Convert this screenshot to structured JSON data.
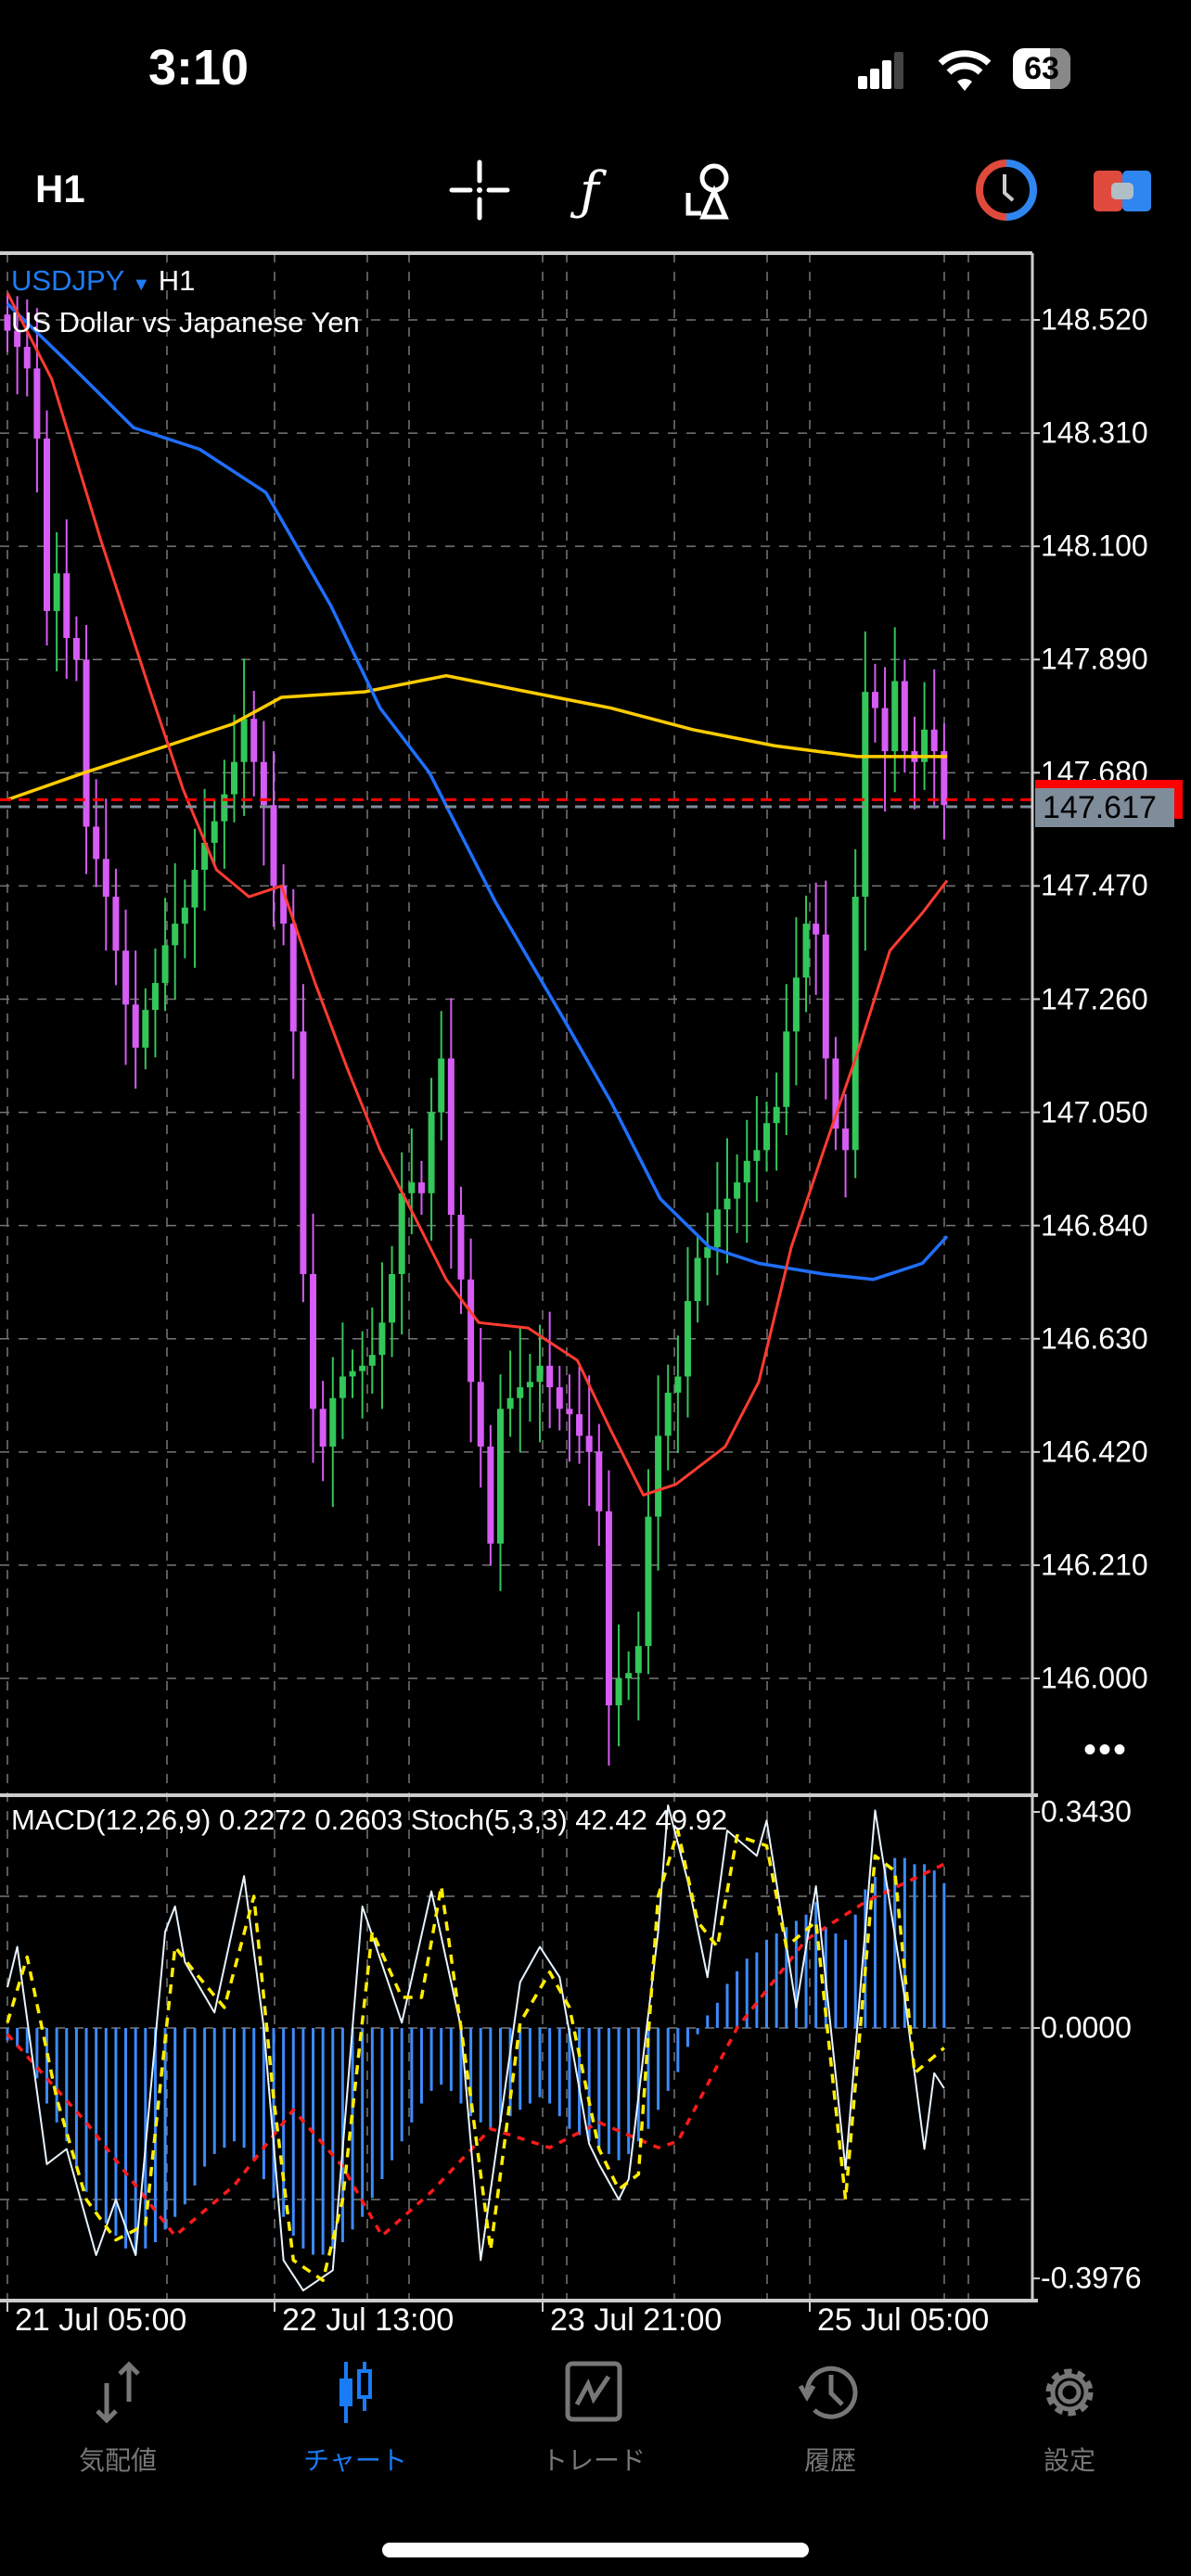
{
  "status_bar": {
    "time": "3:10",
    "battery": "63",
    "signal_bars": 3,
    "wifi": true
  },
  "toolbar": {
    "timeframe": "H1",
    "icons": [
      "crosshair-icon",
      "function-icon",
      "objects-icon",
      "clock-icon",
      "trade-toggle-icon"
    ]
  },
  "chart": {
    "symbol": "USDJPY",
    "timeframe": "H1",
    "description": "US Dollar vs Japanese Yen",
    "price_axis": [
      "148.520",
      "148.310",
      "148.100",
      "147.890",
      "147.680",
      "147.470",
      "147.260",
      "147.050",
      "146.840",
      "146.630",
      "146.420",
      "146.210",
      "146.000"
    ],
    "bid_label": "147.617",
    "ask_price": 147.63,
    "colors": {
      "bull": "#33c659",
      "bear": "#d65cf5",
      "ma_fast": "#ff3b30",
      "ma_mid": "#1f6fff",
      "ma_slow": "#ffcc00",
      "ask": "#ff0000",
      "bid": "#7f8c9a"
    },
    "closes": [
      148.5,
      148.47,
      148.43,
      148.3,
      147.98,
      148.05,
      147.93,
      147.89,
      147.58,
      147.52,
      147.45,
      147.35,
      147.25,
      147.17,
      147.24,
      147.29,
      147.36,
      147.4,
      147.43,
      147.5,
      147.55,
      147.59,
      147.64,
      147.7,
      147.78,
      147.7,
      147.62,
      147.47,
      147.4,
      147.2,
      146.75,
      146.5,
      146.43,
      146.52,
      146.56,
      146.57,
      146.58,
      146.6,
      146.66,
      146.75,
      146.9,
      146.92,
      146.9,
      147.05,
      147.15,
      146.86,
      146.74,
      146.55,
      146.43,
      146.25,
      146.5,
      146.52,
      146.54,
      146.55,
      146.58,
      146.54,
      146.5,
      146.49,
      146.45,
      146.42,
      146.31,
      145.95,
      146.0,
      146.01,
      146.06,
      146.3,
      146.45,
      146.53,
      146.56,
      146.7,
      146.78,
      146.8,
      146.87,
      146.89,
      146.92,
      146.96,
      146.98,
      147.03,
      147.06,
      147.2,
      147.3,
      147.4,
      147.38,
      147.15,
      147.02,
      146.98,
      147.45,
      147.83,
      147.8,
      147.72,
      147.85,
      147.72,
      147.7,
      147.76,
      147.72,
      147.62
    ],
    "ma_fast": [
      [
        0,
        148.57
      ],
      [
        4.5,
        148.41
      ],
      [
        9.5,
        148.11
      ],
      [
        14.5,
        147.83
      ],
      [
        17.8,
        147.65
      ],
      [
        21.2,
        147.5
      ],
      [
        24.5,
        147.45
      ],
      [
        27.8,
        147.47
      ],
      [
        31.2,
        147.29
      ],
      [
        34.5,
        147.13
      ],
      [
        37.8,
        146.98
      ],
      [
        41.2,
        146.86
      ],
      [
        44.5,
        146.74
      ],
      [
        47.8,
        146.66
      ],
      [
        52.8,
        146.65
      ],
      [
        57.8,
        146.59
      ],
      [
        61.2,
        146.46
      ],
      [
        64.5,
        146.34
      ],
      [
        67.8,
        146.36
      ],
      [
        72.8,
        146.43
      ],
      [
        76.2,
        146.55
      ],
      [
        79.5,
        146.8
      ],
      [
        82.8,
        146.98
      ],
      [
        86.2,
        147.16
      ],
      [
        89.5,
        147.35
      ],
      [
        92.8,
        147.42
      ],
      [
        95.3,
        147.48
      ]
    ],
    "ma_mid": [
      [
        0,
        148.55
      ],
      [
        6.2,
        148.44
      ],
      [
        12.8,
        148.32
      ],
      [
        19.5,
        148.28
      ],
      [
        26.2,
        148.2
      ],
      [
        32.8,
        147.99
      ],
      [
        37.8,
        147.8
      ],
      [
        42.8,
        147.68
      ],
      [
        49.5,
        147.44
      ],
      [
        56.2,
        147.23
      ],
      [
        61.2,
        147.07
      ],
      [
        66.2,
        146.89
      ],
      [
        71.2,
        146.8
      ],
      [
        76.2,
        146.77
      ],
      [
        82.8,
        146.75
      ],
      [
        87.8,
        146.74
      ],
      [
        92.8,
        146.77
      ],
      [
        95.3,
        146.82
      ]
    ],
    "ma_slow": [
      [
        0,
        147.63
      ],
      [
        7.8,
        147.68
      ],
      [
        16.2,
        147.73
      ],
      [
        22.8,
        147.77
      ],
      [
        27.8,
        147.82
      ],
      [
        36.2,
        147.83
      ],
      [
        44.5,
        147.86
      ],
      [
        52.8,
        147.83
      ],
      [
        61.2,
        147.8
      ],
      [
        69.5,
        147.76
      ],
      [
        77.8,
        147.73
      ],
      [
        86.2,
        147.71
      ],
      [
        95.3,
        147.71
      ]
    ]
  },
  "indicator": {
    "label": "MACD(12,26,9) 0.2272 0.2603 Stoch(5,3,3) 42.42 49.92",
    "axis": [
      "0.3430",
      "0.0000",
      "-0.3976"
    ],
    "range": [
      -0.3976,
      0.343
    ],
    "colors": {
      "histogram": "#3d8bfd",
      "signal": "#ff1a1a",
      "stoch_main": "#e8f4ff",
      "stoch_signal": "#ffee00"
    },
    "histogram": [
      -0.02,
      -0.03,
      -0.04,
      -0.08,
      -0.12,
      -0.15,
      -0.18,
      -0.22,
      -0.26,
      -0.29,
      -0.31,
      -0.33,
      -0.35,
      -0.36,
      -0.35,
      -0.34,
      -0.32,
      -0.3,
      -0.28,
      -0.25,
      -0.22,
      -0.2,
      -0.19,
      -0.18,
      -0.19,
      -0.21,
      -0.24,
      -0.27,
      -0.3,
      -0.33,
      -0.35,
      -0.36,
      -0.36,
      -0.35,
      -0.34,
      -0.32,
      -0.3,
      -0.27,
      -0.24,
      -0.21,
      -0.18,
      -0.15,
      -0.12,
      -0.1,
      -0.09,
      -0.1,
      -0.12,
      -0.14,
      -0.15,
      -0.16,
      -0.15,
      -0.14,
      -0.13,
      -0.12,
      -0.11,
      -0.12,
      -0.14,
      -0.16,
      -0.17,
      -0.18,
      -0.19,
      -0.2,
      -0.21,
      -0.2,
      -0.18,
      -0.16,
      -0.13,
      -0.1,
      -0.07,
      -0.03,
      -0.01,
      0.02,
      0.04,
      0.07,
      0.09,
      0.11,
      0.12,
      0.14,
      0.15,
      0.16,
      0.17,
      0.18,
      0.2,
      0.16,
      0.15,
      0.14,
      0.18,
      0.22,
      0.24,
      0.26,
      0.27,
      0.27,
      0.26,
      0.26,
      0.25,
      0.23
    ],
    "signal": [
      [
        0,
        -0.01
      ],
      [
        8,
        -0.15
      ],
      [
        17,
        -0.33
      ],
      [
        23,
        -0.25
      ],
      [
        29,
        -0.13
      ],
      [
        34,
        -0.22
      ],
      [
        38,
        -0.33
      ],
      [
        43,
        -0.26
      ],
      [
        49,
        -0.16
      ],
      [
        55,
        -0.19
      ],
      [
        60,
        -0.15
      ],
      [
        66,
        -0.19
      ],
      [
        68,
        -0.18
      ],
      [
        74,
        0.0
      ],
      [
        81,
        0.14
      ],
      [
        87,
        0.2
      ],
      [
        95,
        0.26
      ]
    ],
    "stoch_main": [
      [
        0,
        62
      ],
      [
        1,
        70
      ],
      [
        4,
        27
      ],
      [
        6,
        30
      ],
      [
        9,
        9
      ],
      [
        11,
        20
      ],
      [
        13,
        9
      ],
      [
        16,
        73
      ],
      [
        17,
        78
      ],
      [
        18,
        67
      ],
      [
        21,
        57
      ],
      [
        24,
        84
      ],
      [
        26,
        54
      ],
      [
        28,
        8
      ],
      [
        30,
        2
      ],
      [
        33,
        6
      ],
      [
        36,
        78
      ],
      [
        40,
        55
      ],
      [
        43,
        81
      ],
      [
        46,
        54
      ],
      [
        48,
        8
      ],
      [
        52,
        63
      ],
      [
        54,
        70
      ],
      [
        56,
        64
      ],
      [
        59,
        31
      ],
      [
        60,
        27
      ],
      [
        62,
        20
      ],
      [
        63,
        24
      ],
      [
        66,
        73
      ],
      [
        67,
        98
      ],
      [
        69,
        83
      ],
      [
        71,
        64
      ],
      [
        73,
        93
      ],
      [
        76,
        88
      ],
      [
        77,
        95
      ],
      [
        80,
        58
      ],
      [
        82,
        82
      ],
      [
        85,
        26
      ],
      [
        88,
        97
      ],
      [
        91,
        60
      ],
      [
        93,
        30
      ],
      [
        94,
        45
      ],
      [
        95,
        42
      ]
    ],
    "stoch_signal": [
      [
        0,
        55
      ],
      [
        2,
        68
      ],
      [
        5,
        40
      ],
      [
        8,
        20
      ],
      [
        11,
        12
      ],
      [
        14,
        15
      ],
      [
        17,
        70
      ],
      [
        19,
        65
      ],
      [
        22,
        58
      ],
      [
        25,
        80
      ],
      [
        27,
        40
      ],
      [
        29,
        8
      ],
      [
        32,
        4
      ],
      [
        34,
        20
      ],
      [
        37,
        73
      ],
      [
        40,
        60
      ],
      [
        42,
        60
      ],
      [
        44,
        82
      ],
      [
        47,
        40
      ],
      [
        49,
        10
      ],
      [
        52,
        55
      ],
      [
        55,
        65
      ],
      [
        57,
        58
      ],
      [
        60,
        30
      ],
      [
        62,
        22
      ],
      [
        64,
        25
      ],
      [
        66,
        80
      ],
      [
        68,
        93
      ],
      [
        70,
        75
      ],
      [
        72,
        70
      ],
      [
        74,
        92
      ],
      [
        77,
        90
      ],
      [
        79,
        70
      ],
      [
        82,
        75
      ],
      [
        85,
        20
      ],
      [
        88,
        88
      ],
      [
        90,
        85
      ],
      [
        92,
        45
      ],
      [
        95,
        50
      ]
    ],
    "levels": [
      80,
      20
    ]
  },
  "time_axis": [
    "21 Jul 05:00",
    "22 Jul 13:00",
    "23 Jul 21:00",
    "25 Jul 05:00"
  ],
  "tabs": [
    {
      "label": "気配値",
      "icon": "quotes-arrows-icon",
      "active": false
    },
    {
      "label": "チャート",
      "icon": "candlestick-icon",
      "active": true
    },
    {
      "label": "トレード",
      "icon": "trade-chart-icon",
      "active": false
    },
    {
      "label": "履歴",
      "icon": "history-icon",
      "active": false
    },
    {
      "label": "設定",
      "icon": "gear-icon",
      "active": false
    }
  ]
}
